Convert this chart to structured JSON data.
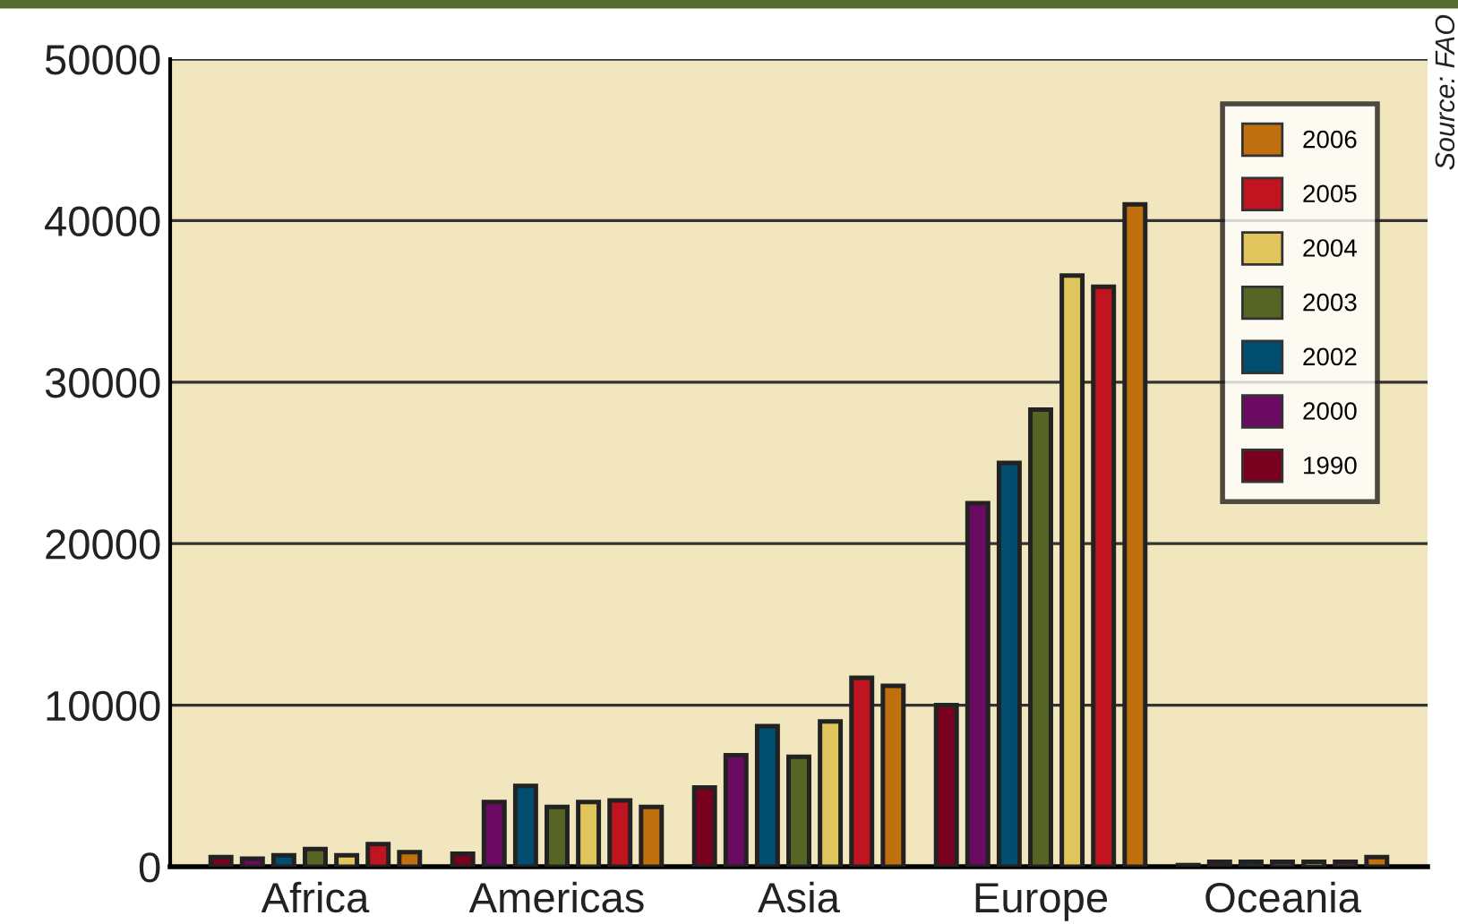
{
  "chart_data": {
    "type": "bar",
    "categories": [
      "Africa",
      "Americas",
      "Asia",
      "Europe",
      "Oceania"
    ],
    "series": [
      {
        "name": "1990",
        "color": "#7a0020",
        "values": [
          600,
          800,
          4900,
          10000,
          100
        ]
      },
      {
        "name": "2000",
        "color": "#6b0a63",
        "values": [
          500,
          4000,
          6900,
          22500,
          300
        ]
      },
      {
        "name": "2002",
        "color": "#004d70",
        "values": [
          700,
          5000,
          8700,
          25000,
          300
        ]
      },
      {
        "name": "2003",
        "color": "#566424",
        "values": [
          1100,
          3700,
          6800,
          28300,
          300
        ]
      },
      {
        "name": "2004",
        "color": "#e0c45c",
        "values": [
          700,
          4000,
          9000,
          36600,
          300
        ]
      },
      {
        "name": "2005",
        "color": "#c01420",
        "values": [
          1400,
          4100,
          11700,
          35900,
          300
        ]
      },
      {
        "name": "2006",
        "color": "#c0700f",
        "values": [
          900,
          3700,
          11200,
          41000,
          600
        ]
      }
    ],
    "ylim": [
      0,
      50000
    ],
    "yticks": [
      0,
      10000,
      20000,
      30000,
      40000,
      50000
    ],
    "grid": "y",
    "legend": "top right",
    "annotations": [
      "Source: FAO"
    ]
  }
}
